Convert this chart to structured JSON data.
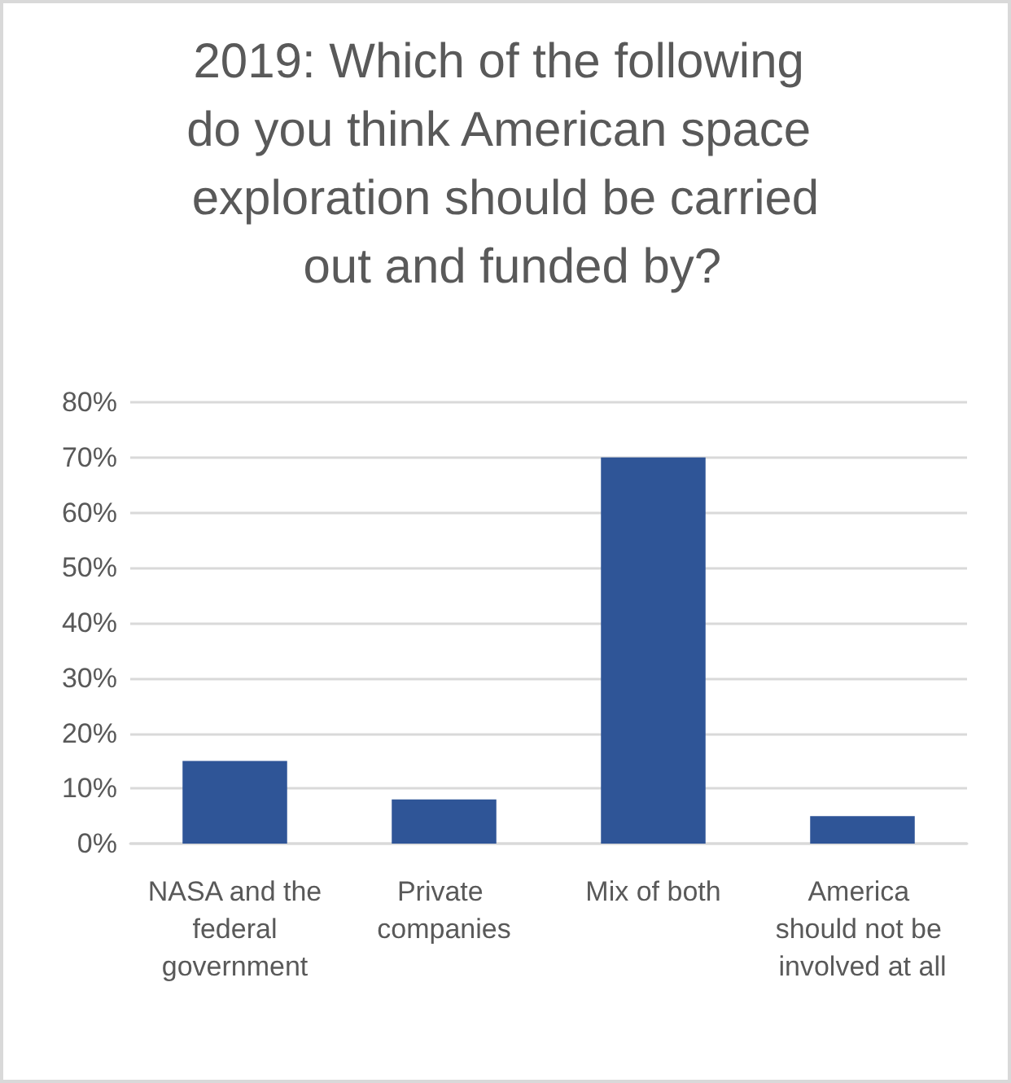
{
  "chart_data": {
    "type": "bar",
    "title": "2019: Which of the following do you think American space exploration should be carried out and funded by?",
    "categories": [
      "NASA and the federal government",
      "Private companies",
      "Mix of both",
      "America should not be involved at all"
    ],
    "values": [
      15,
      8,
      70,
      5
    ],
    "color": "#2f5597",
    "ylim": [
      0,
      80
    ],
    "yticks": [
      {
        "value": 0,
        "label": "0%"
      },
      {
        "value": 10,
        "label": "10%"
      },
      {
        "value": 20,
        "label": "20%"
      },
      {
        "value": 30,
        "label": "30%"
      },
      {
        "value": 40,
        "label": "40%"
      },
      {
        "value": 50,
        "label": "50%"
      },
      {
        "value": 60,
        "label": "60%"
      },
      {
        "value": 70,
        "label": "70%"
      },
      {
        "value": 80,
        "label": "80%"
      }
    ],
    "grid": "y"
  }
}
